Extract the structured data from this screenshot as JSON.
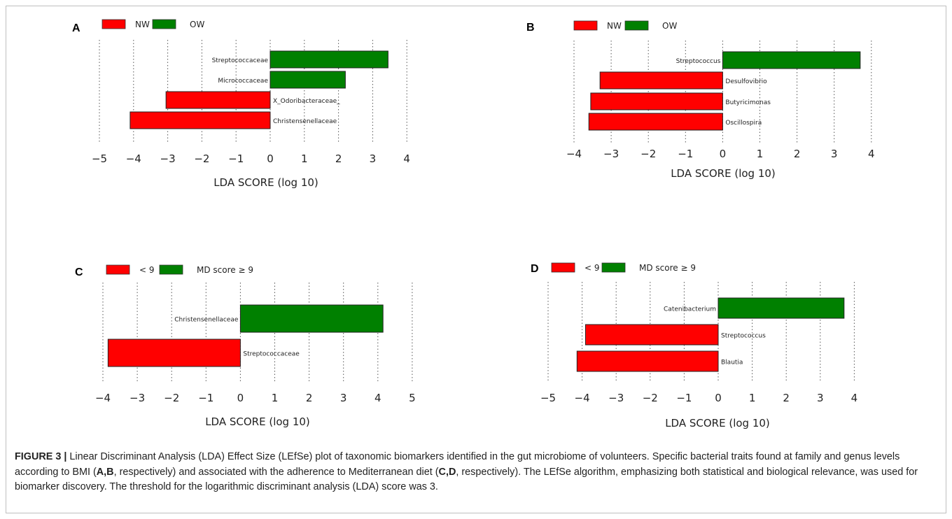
{
  "chart_data": [
    {
      "panel": "A",
      "type": "bar",
      "orientation": "horizontal",
      "legend": [
        {
          "label": "NW",
          "color": "#ff0000"
        },
        {
          "label": "OW",
          "color": "#008000"
        }
      ],
      "categories": [
        "Streptococcaceae",
        "Micrococcaceae",
        "X_Odoribacteraceae_",
        "Christensenellaceae"
      ],
      "values": [
        3.45,
        2.2,
        -3.05,
        -4.1
      ],
      "xlabel": "LDA SCORE (log 10)",
      "xlim": [
        -5,
        4
      ],
      "xticks": [
        "−5",
        "−4",
        "−3",
        "−2",
        "−1",
        "0",
        "1",
        "2",
        "3",
        "4"
      ],
      "grid": "vertical dotted",
      "legend_position": "top-left"
    },
    {
      "panel": "B",
      "type": "bar",
      "orientation": "horizontal",
      "legend": [
        {
          "label": "NW",
          "color": "#ff0000"
        },
        {
          "label": "OW",
          "color": "#008000"
        }
      ],
      "categories": [
        "Streptococcus",
        "Desulfovibrio",
        "Butyricimonas",
        "Oscillospira"
      ],
      "values": [
        3.7,
        -3.3,
        -3.55,
        -3.6
      ],
      "xlabel": "LDA SCORE (log 10)",
      "xlim": [
        -4,
        4
      ],
      "xticks": [
        "−4",
        "−3",
        "−2",
        "−1",
        "0",
        "1",
        "2",
        "3",
        "4"
      ],
      "grid": "vertical dotted",
      "legend_position": "top-left"
    },
    {
      "panel": "C",
      "type": "bar",
      "orientation": "horizontal",
      "legend": [
        {
          "label": "< 9",
          "color": "#ff0000"
        },
        {
          "label": "MD score ≥ 9",
          "color": "#008000"
        }
      ],
      "categories": [
        "Christensenellaceae",
        "Streptococcaceae"
      ],
      "values": [
        4.15,
        -3.85
      ],
      "xlabel": "LDA SCORE (log 10)",
      "xlim": [
        -4,
        5
      ],
      "xticks": [
        "−4",
        "−3",
        "−2",
        "−1",
        "0",
        "1",
        "2",
        "3",
        "4",
        "5"
      ],
      "grid": "vertical dotted",
      "legend_position": "top-left"
    },
    {
      "panel": "D",
      "type": "bar",
      "orientation": "horizontal",
      "legend": [
        {
          "label": "< 9",
          "color": "#ff0000"
        },
        {
          "label": "MD score ≥ 9",
          "color": "#008000"
        }
      ],
      "categories": [
        "Catenibacterium",
        "Streptococcus",
        "Blautia"
      ],
      "values": [
        3.7,
        -3.9,
        -4.15
      ],
      "xlabel": "LDA SCORE (log 10)",
      "xlim": [
        -5,
        4
      ],
      "xticks": [
        "−5",
        "−4",
        "−3",
        "−2",
        "−1",
        "0",
        "1",
        "2",
        "3",
        "4"
      ],
      "grid": "vertical dotted",
      "legend_position": "top-left"
    }
  ],
  "caption": {
    "figure_label": "FIGURE 3 |",
    "parts": [
      {
        "text": " Linear Discriminant Analysis (LDA) Effect Size (LEfSe) plot of taxonomic biomarkers identified in the gut microbiome of volunteers. Specific bacterial traits found at family and genus levels according to BMI (",
        "bold": false
      },
      {
        "text": "A,B",
        "bold": true
      },
      {
        "text": ", respectively) and associated with the adherence to Mediterranean diet (",
        "bold": false
      },
      {
        "text": "C,D",
        "bold": true
      },
      {
        "text": ", respectively). The LEfSe algorithm, emphasizing both statistical and biological relevance, was used for biomarker discovery. The threshold for the logarithmic discriminant analysis (LDA) score was 3.",
        "bold": false
      }
    ]
  }
}
